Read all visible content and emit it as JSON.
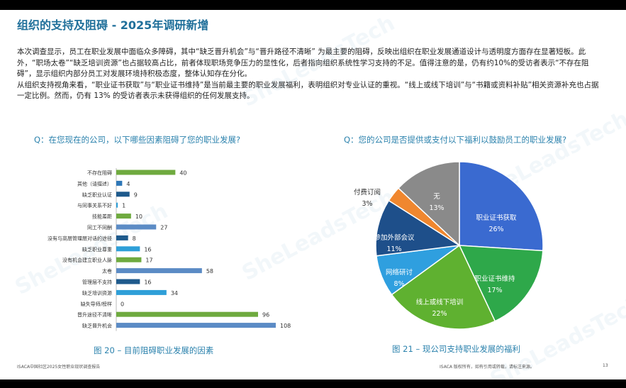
{
  "title": "组织的支持及阻碍 - 2025年调研新增",
  "paragraphs": [
    "本次调查显示，员工在职业发展中面临众多障碍，其中“缺乏晋升机会”与“晋升路径不清晰” 为最主要的阻碍，反映出组织在职业发展通道设计与透明度方面存在显著短板。此外，“职场太卷”“缺乏培训资源”也占据较高占比，前者体现职场竞争压力的显性化，后者指向组织系统性学习支持的不足。值得注意的是，仍有约10%的受访者表示“不存在阻碍”，显示组织内部分员工对发展环境持积极态度，整体认知存在分化。",
    "从组织支持视角来看，“职业证书获取”与“职业证书维持”是当前最主要的职业发展福利，表明组织对专业认证的重视。“线上或线下培训”与“书籍或资料补贴”相关资源补充也占据一定比例。然而，仍有 13% 的受访者表示未获得组织的任何发展支持。"
  ],
  "question_left": "Q：在您现在的公司，以下哪些因素阻碍了您的职业发展?",
  "question_right": "Q：您的公司是否提供或支付以下福利以鼓励员工的职业发展?",
  "caption_left": "图 20 – 目前阻碍职业发展的因素",
  "caption_right": "图 21 – 现公司支持职业发展的福利",
  "footer_left": "ISACA中国社区2025女性职业现状调查报告",
  "footer_right": "ISACA 版权所有，如有引用或转载，请标注来源。",
  "page_number": "13",
  "watermark_text": "SheLeadsTech",
  "chart_data": [
    {
      "type": "bar",
      "orientation": "horizontal",
      "categories": [
        "不存在阻碍",
        "其他（请描述）",
        "缺乏职业认证",
        "与同事关系不好",
        "技能差距",
        "同工不同酬",
        "没有与高层管理层对话的途径",
        "缺乏职业尊重",
        "没有机会建立职业人脉",
        "太卷",
        "管理层不支持",
        "缺乏培训资源",
        "缺失导师/榜样",
        "晋升途径不清晰",
        "缺乏晋升机会"
      ],
      "values": [
        40,
        4,
        9,
        1,
        10,
        27,
        8,
        16,
        17,
        58,
        16,
        34,
        0,
        96,
        108
      ],
      "colors": [
        "#6faa3f",
        "#2e77b7",
        "#1e5a8c",
        "#2e9fd8",
        "#6faa3f",
        "#5b8bc5",
        "#1e5a8c",
        "#2e9fd8",
        "#6faa3f",
        "#5b8bc5",
        "#1e5a8c",
        "#2e9fd8",
        "#6faa3f",
        "#6faa3f",
        "#5b8bc5"
      ],
      "xlim": [
        0,
        108
      ],
      "grid": false,
      "legend": "none"
    },
    {
      "type": "pie",
      "labels": [
        "职业证书获取",
        "职业证书维持",
        "线上或线下培训",
        "网络研讨",
        "参加外部会议",
        "付费订阅",
        "无"
      ],
      "values": [
        26,
        17,
        22,
        8,
        11,
        3,
        13
      ],
      "value_labels": [
        "26%",
        "17%",
        "22%",
        "8%",
        "11%",
        "3%",
        "13%"
      ],
      "colors": [
        "#3a6ad0",
        "#2ea84a",
        "#5fb130",
        "#2f9fdf",
        "#1e4f8a",
        "#f0872f",
        "#8a8a8a"
      ],
      "legend": "none"
    }
  ]
}
